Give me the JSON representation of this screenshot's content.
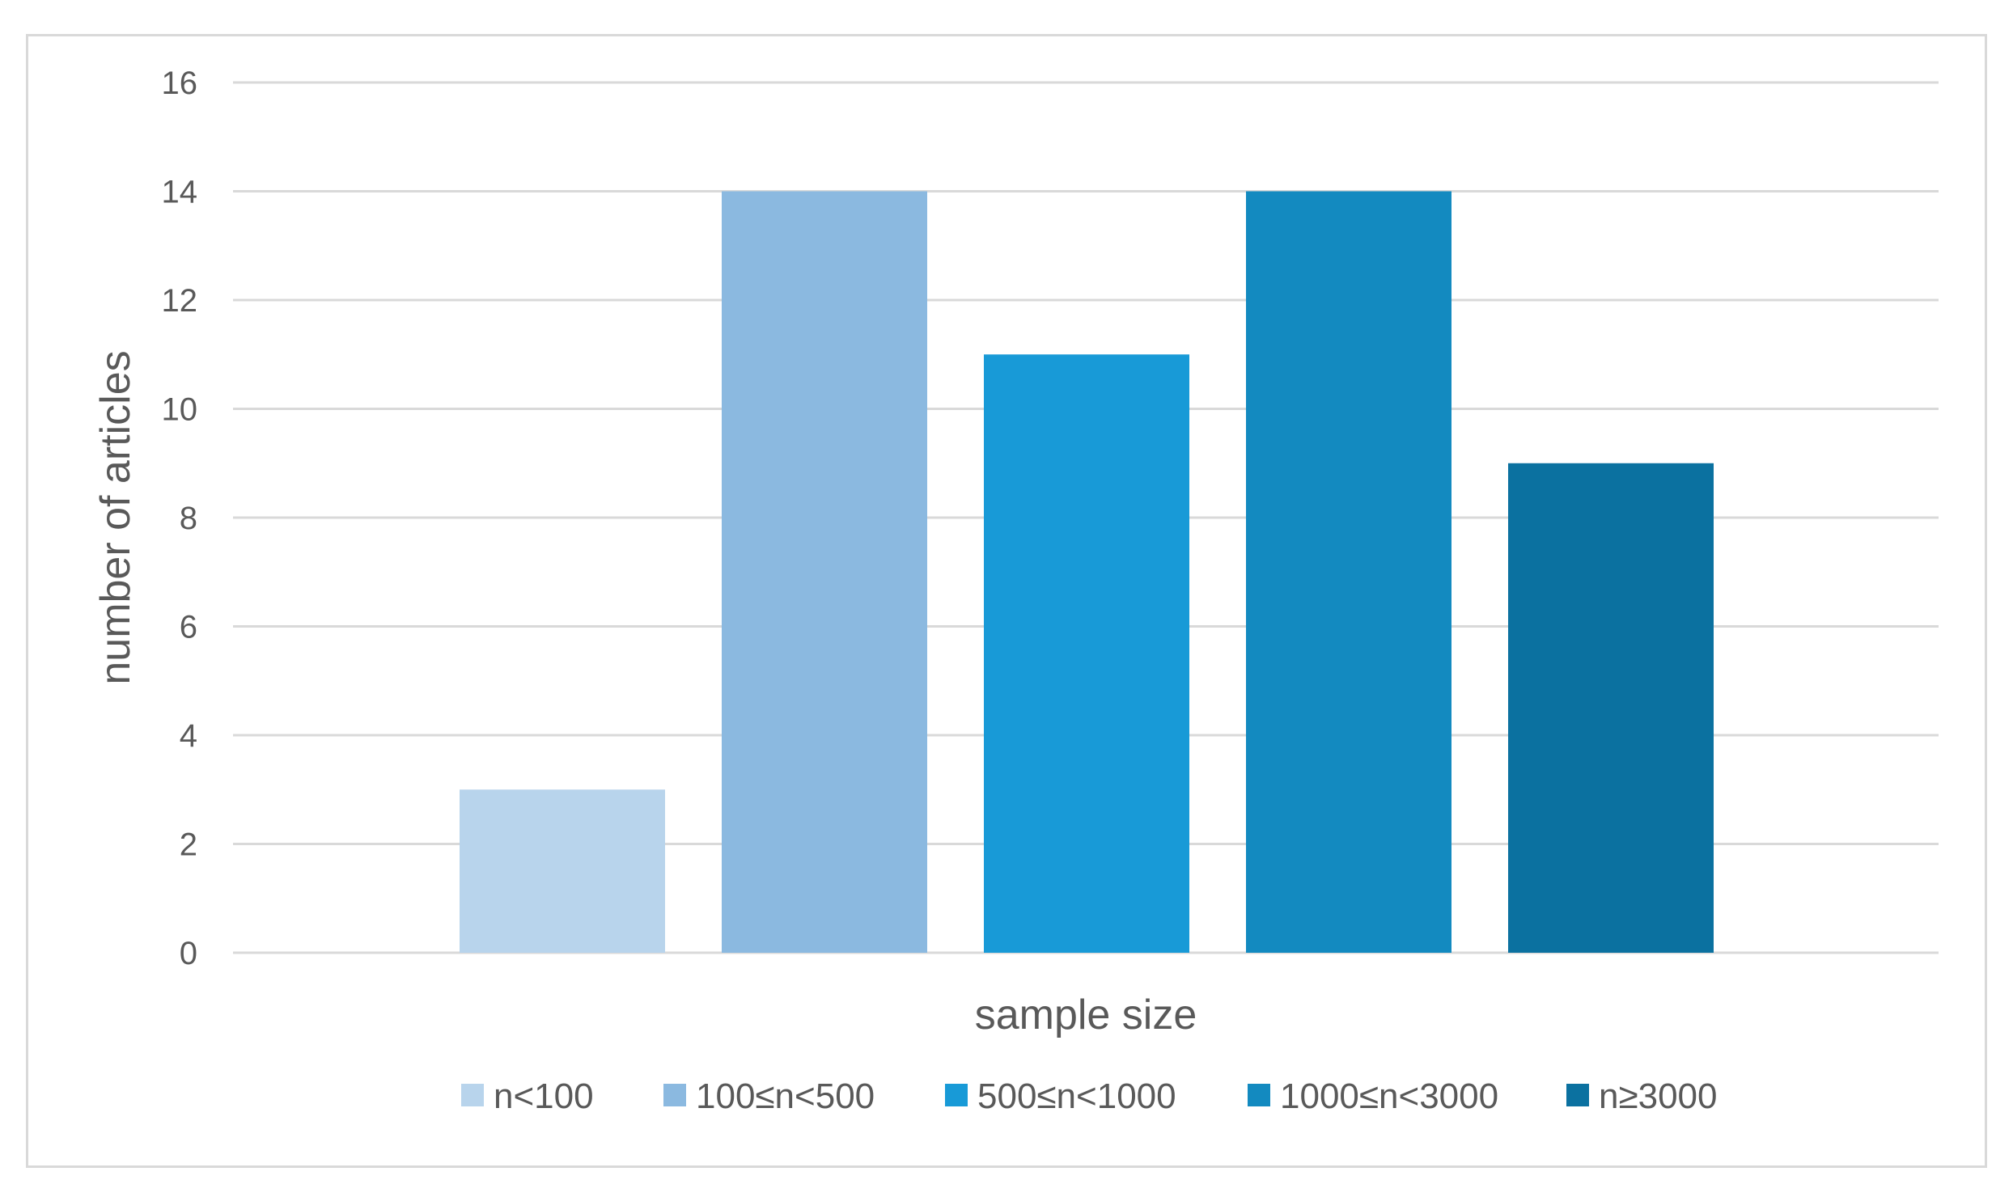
{
  "chart_data": {
    "type": "bar",
    "title": "",
    "xlabel": "sample size",
    "ylabel": "number of articles",
    "ylim": [
      0,
      16
    ],
    "yticks": [
      0,
      2,
      4,
      6,
      8,
      10,
      12,
      14,
      16
    ],
    "grid": true,
    "legend_position": "bottom",
    "categories": [
      "n<100",
      "100≤n<500",
      "500≤n<1000",
      "1000≤n<3000",
      "n≥3000"
    ],
    "series": [
      {
        "name": "n<100",
        "value": 3,
        "color": "#b8d4ec"
      },
      {
        "name": "100≤n<500",
        "value": 14,
        "color": "#8bb9e0"
      },
      {
        "name": "500≤n<1000",
        "value": 11,
        "color": "#189ad7"
      },
      {
        "name": "1000≤n<3000",
        "value": 14,
        "color": "#138ac0"
      },
      {
        "name": "n≥3000",
        "value": 9,
        "color": "#0b71a0"
      }
    ],
    "colors": {
      "gridline": "#d9d9d9",
      "text": "#595959",
      "frame": "#d9d9d9"
    }
  }
}
